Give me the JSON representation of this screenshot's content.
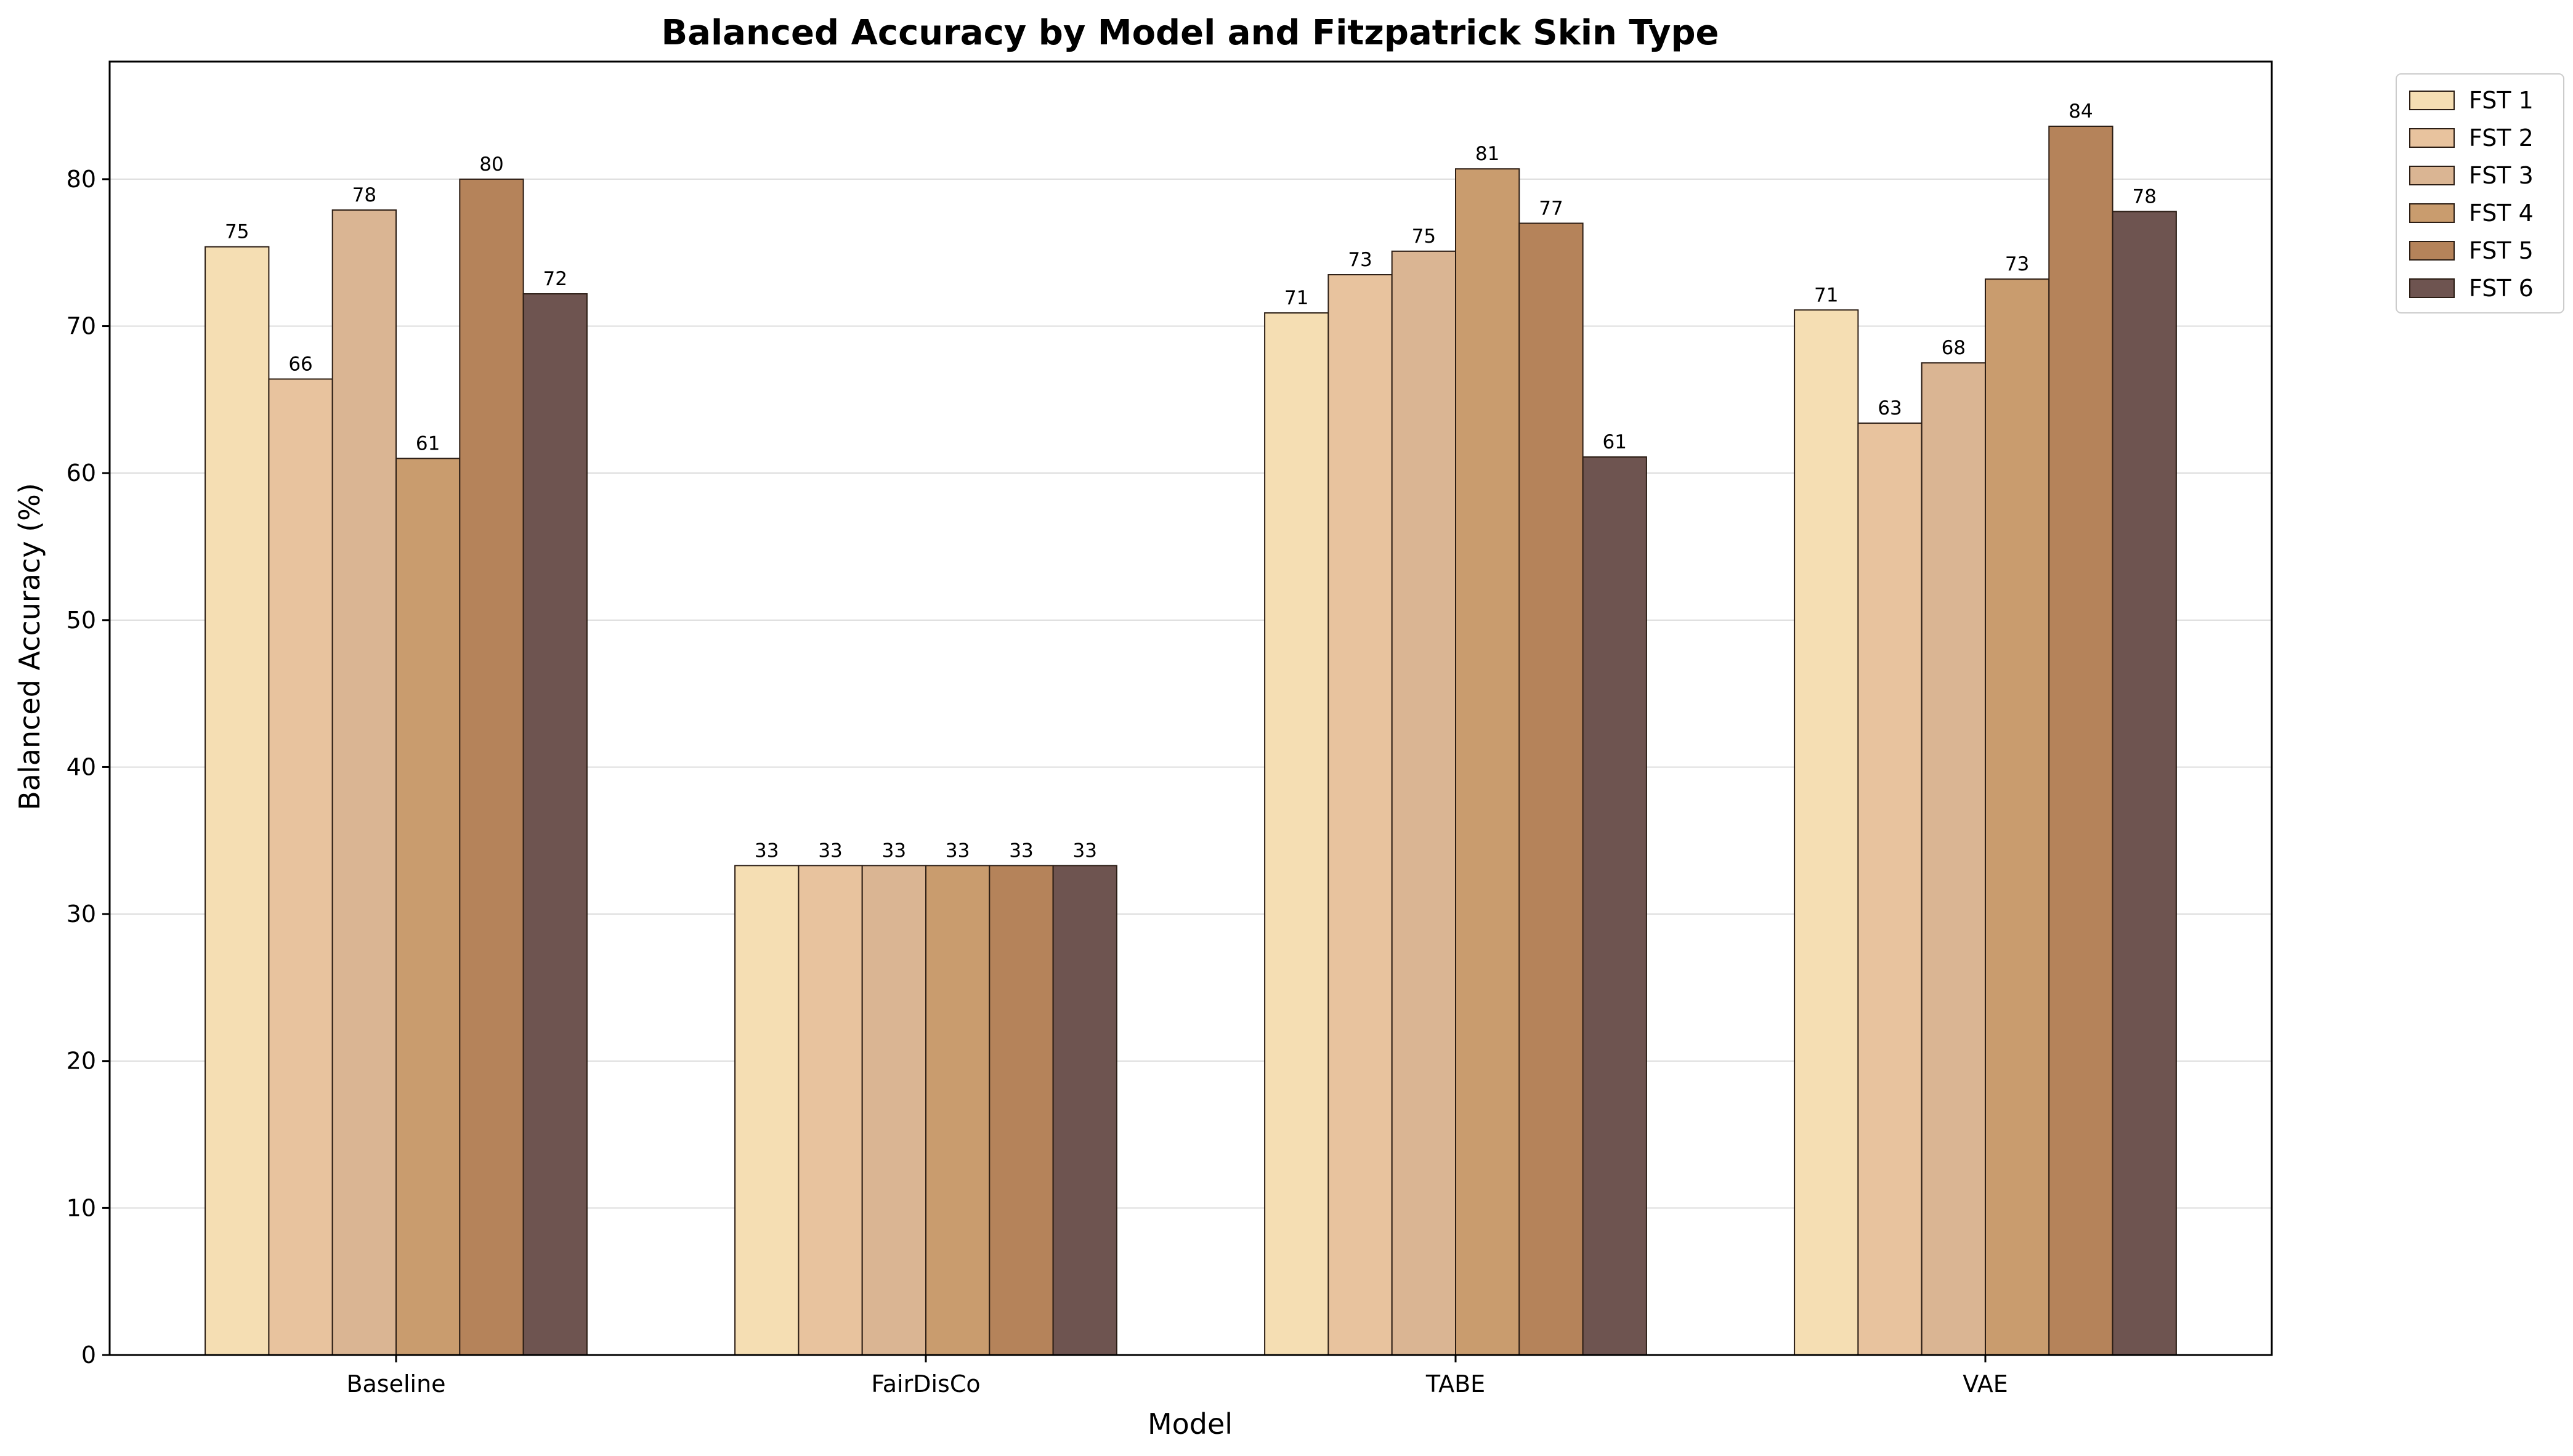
{
  "chart_data": {
    "type": "bar",
    "title": "Balanced Accuracy by Model and Fitzpatrick Skin Type",
    "xlabel": "Model",
    "ylabel": "Balanced Accuracy (%)",
    "ylim": [
      0,
      88
    ],
    "yticks": [
      0,
      10,
      20,
      30,
      40,
      50,
      60,
      70,
      80
    ],
    "grid": "horizontal",
    "legend_position": "outside-top-right",
    "categories": [
      "Baseline",
      "FairDisCo",
      "TABE",
      "VAE"
    ],
    "series": [
      {
        "name": "FST 1",
        "color": "#F5DEB3",
        "values": [
          75.4,
          33.3,
          70.9,
          71.1
        ],
        "labels": [
          "75",
          "33",
          "71",
          "71"
        ]
      },
      {
        "name": "FST 2",
        "color": "#E8C39E",
        "values": [
          66.4,
          33.3,
          73.5,
          63.4
        ],
        "labels": [
          "66",
          "33",
          "73",
          "63"
        ]
      },
      {
        "name": "FST 3",
        "color": "#DAB593",
        "values": [
          77.9,
          33.3,
          75.1,
          67.5
        ],
        "labels": [
          "78",
          "33",
          "75",
          "68"
        ]
      },
      {
        "name": "FST 4",
        "color": "#C99C6E",
        "values": [
          61.0,
          33.3,
          80.7,
          73.2
        ],
        "labels": [
          "61",
          "33",
          "81",
          "73"
        ]
      },
      {
        "name": "FST 5",
        "color": "#B5835A",
        "values": [
          80.0,
          33.3,
          77.0,
          83.6
        ],
        "labels": [
          "80",
          "33",
          "77",
          "84"
        ]
      },
      {
        "name": "FST 6",
        "color": "#6E5450",
        "values": [
          72.2,
          33.3,
          61.1,
          77.8
        ],
        "labels": [
          "72",
          "33",
          "61",
          "78"
        ]
      }
    ]
  }
}
